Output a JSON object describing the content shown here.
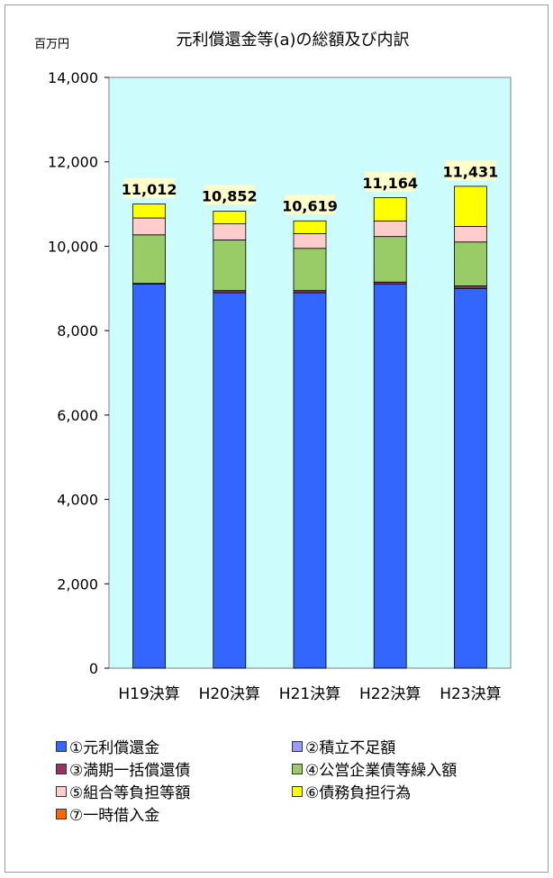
{
  "chart_data": {
    "type": "bar",
    "stacked": true,
    "title": "元利償還金等(a)の総額及び内訳",
    "unit_label": "百万円",
    "categories": [
      "H19決算",
      "H20決算",
      "H21決算",
      "H22決算",
      "H23決算"
    ],
    "ylim": [
      0,
      14000
    ],
    "yticks": [
      0,
      2000,
      4000,
      6000,
      8000,
      10000,
      12000,
      14000
    ],
    "ytick_labels": [
      "0",
      "2,000",
      "4,000",
      "6,000",
      "8,000",
      "10,000",
      "12,000",
      "14,000"
    ],
    "grid": false,
    "plot_background": "#ccfcfc",
    "legend_position": "bottom",
    "totals": [
      11012,
      10852,
      10619,
      11164,
      11431
    ],
    "total_labels": [
      "11,012",
      "10,852",
      "10,619",
      "11,164",
      "11,431"
    ],
    "series": [
      {
        "name": "①元利償還金",
        "color": "#3366ff",
        "values": [
          9100,
          8900,
          8900,
          9100,
          9000
        ]
      },
      {
        "name": "②積立不足額",
        "color": "#9999ff",
        "values": [
          0,
          0,
          0,
          0,
          0
        ]
      },
      {
        "name": "③満期一括償還債",
        "color": "#993366",
        "values": [
          20,
          50,
          50,
          50,
          60
        ]
      },
      {
        "name": "④公営企業債等繰入額",
        "color": "#99cc66",
        "values": [
          1150,
          1200,
          1000,
          1080,
          1040
        ]
      },
      {
        "name": "⑤組合等負担等額",
        "color": "#ffcccc",
        "values": [
          400,
          380,
          350,
          370,
          370
        ]
      },
      {
        "name": "⑥債務負担行為",
        "color": "#ffff00",
        "values": [
          330,
          300,
          300,
          550,
          950
        ]
      },
      {
        "name": "⑦一時借入金",
        "color": "#ff6600",
        "values": [
          0,
          0,
          0,
          0,
          0
        ]
      }
    ]
  }
}
